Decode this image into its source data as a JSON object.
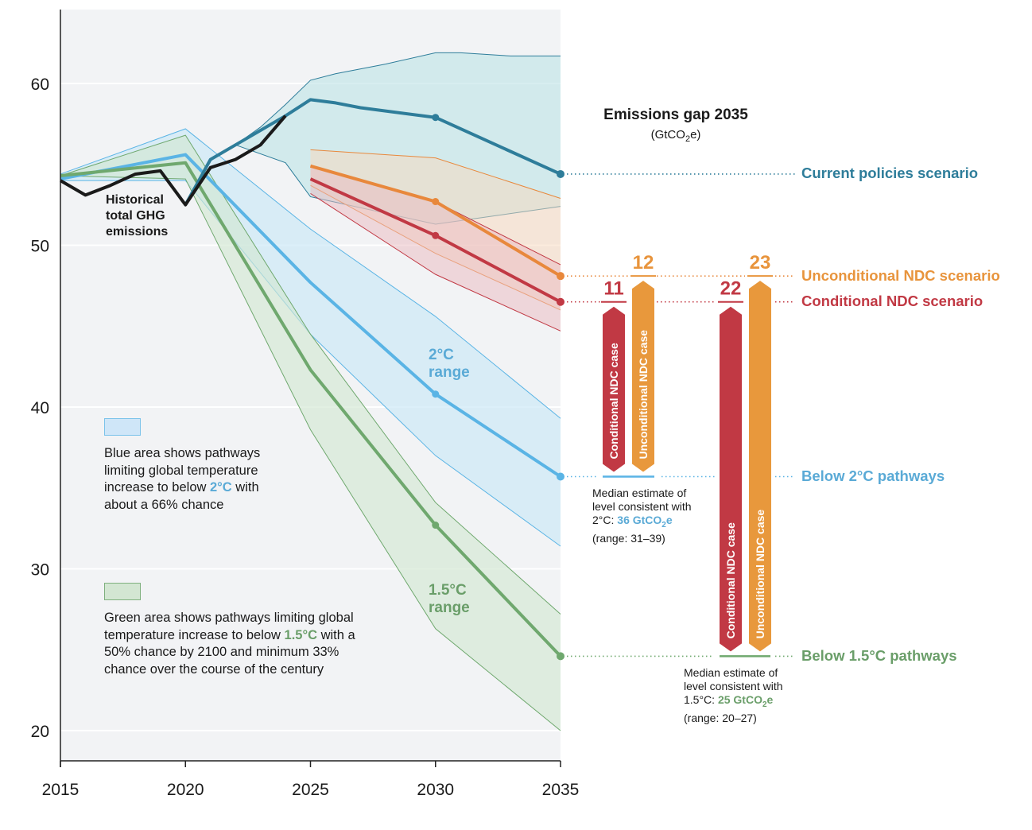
{
  "chart_data": {
    "type": "line",
    "title": "Emissions gap 2035",
    "unit": "GtCO2e",
    "xlabel": "",
    "ylabel": "",
    "xlim": [
      2015,
      2035
    ],
    "ylim": [
      18,
      64.5
    ],
    "x_ticks": [
      2015,
      2020,
      2025,
      2030,
      2035
    ],
    "y_ticks": [
      20,
      30,
      40,
      50,
      60
    ],
    "grid": "horizontal",
    "colors": {
      "historical": "#1a1a1a",
      "current": "#2e7d9a",
      "current_fill": "#bfe3e7",
      "unconditional": "#e8883c",
      "unconditional_fill": "#f8d7bc",
      "conditional": "#c13944",
      "conditional_fill": "#eab9bf",
      "two_c": "#5ab4e5",
      "two_c_fill": "#cde8f7",
      "one_five_c": "#6fa86e",
      "one_five_c_fill": "#d3e8d2",
      "plot_bg": "#f2f3f5"
    },
    "series": [
      {
        "key": "historical",
        "name": "Historical total GHG emissions",
        "x": [
          2015,
          2016,
          2017,
          2018,
          2019,
          2020,
          2021,
          2022,
          2023,
          2024
        ],
        "values": [
          54.0,
          53.1,
          53.7,
          54.4,
          54.6,
          52.5,
          54.8,
          55.3,
          56.2,
          58.0
        ]
      },
      {
        "key": "current",
        "name": "Current policies scenario",
        "x": [
          2020,
          2021,
          2022,
          2023,
          2024,
          2025,
          2026,
          2027,
          2030,
          2035
        ],
        "values": [
          52.5,
          55.3,
          56.2,
          57.1,
          58.0,
          59.0,
          58.8,
          58.5,
          57.9,
          54.4
        ],
        "markers": [
          2030,
          2035
        ],
        "band": {
          "x": [
            2021,
            2022,
            2023,
            2024,
            2025,
            2026,
            2028,
            2030,
            2031,
            2033,
            2035
          ],
          "upper": [
            55.3,
            56.2,
            57.3,
            58.7,
            60.2,
            60.6,
            61.2,
            61.9,
            61.9,
            61.7,
            61.7
          ],
          "lower_x": [
            2021,
            2022,
            2024,
            2025,
            2030,
            2035
          ],
          "lower": [
            55.3,
            56.2,
            55.1,
            53.0,
            51.3,
            52.4
          ]
        }
      },
      {
        "key": "unconditional",
        "name": "Unconditional NDC scenario",
        "x": [
          2025,
          2030,
          2035
        ],
        "values": [
          54.9,
          52.7,
          48.1
        ],
        "markers": [
          2030,
          2035
        ],
        "band": {
          "x": [
            2025,
            2030,
            2035
          ],
          "upper": [
            55.9,
            55.4,
            52.9
          ],
          "lower": [
            53.7,
            49.5,
            46.0
          ]
        }
      },
      {
        "key": "conditional",
        "name": "Conditional NDC scenario",
        "x": [
          2025,
          2030,
          2035
        ],
        "values": [
          54.1,
          50.6,
          46.5
        ],
        "markers": [
          2030,
          2035
        ],
        "band": {
          "x": [
            2025,
            2030,
            2035
          ],
          "upper": [
            54.9,
            52.7,
            48.8
          ],
          "lower": [
            53.2,
            48.2,
            44.7
          ]
        }
      },
      {
        "key": "two_c",
        "name": "Below 2°C pathways",
        "x": [
          2015,
          2020,
          2025,
          2030,
          2035
        ],
        "values": [
          54.1,
          55.6,
          47.7,
          40.8,
          35.7
        ],
        "markers": [
          2030,
          2035
        ],
        "band": {
          "x": [
            2015,
            2020,
            2025,
            2030,
            2035
          ],
          "upper": [
            54.4,
            57.2,
            51.0,
            45.6,
            39.3
          ],
          "lower": [
            54.0,
            54.0,
            44.5,
            37.0,
            31.4
          ]
        }
      },
      {
        "key": "one_five_c",
        "name": "Below 1.5°C pathways",
        "x": [
          2015,
          2020,
          2025,
          2030,
          2035
        ],
        "values": [
          54.3,
          55.1,
          42.3,
          32.7,
          24.6
        ],
        "markers": [
          2030,
          2035
        ],
        "band": {
          "x": [
            2015,
            2020,
            2025,
            2030,
            2035
          ],
          "upper": [
            54.3,
            56.8,
            44.5,
            34.1,
            27.2
          ],
          "lower": [
            54.3,
            54.1,
            38.6,
            26.3,
            20.0
          ]
        }
      }
    ],
    "annotations": {
      "historical_label": [
        "Historical",
        "total GHG",
        "emissions"
      ],
      "two_c_range": [
        "2°C",
        "range"
      ],
      "one_five_c_range": [
        "1.5°C",
        "range"
      ]
    },
    "gaps": [
      {
        "target": "2°C",
        "case": "Conditional NDC case",
        "value": "11",
        "from": 46.5,
        "to": 35.7
      },
      {
        "target": "2°C",
        "case": "Unconditional NDC case",
        "value": "12",
        "from": 48.1,
        "to": 35.7
      },
      {
        "target": "1.5°C",
        "case": "Conditional NDC case",
        "value": "22",
        "from": 46.5,
        "to": 24.6
      },
      {
        "target": "1.5°C",
        "case": "Unconditional NDC case",
        "value": "23",
        "from": 48.1,
        "to": 24.6
      }
    ]
  },
  "right_panel": {
    "title": "Emissions gap 2035",
    "unit_prefix": "(GtCO",
    "unit_sub": "2",
    "unit_suffix": "e)",
    "scenario_labels": {
      "current": "Current policies scenario",
      "unconditional": "Unconditional NDC scenario",
      "conditional": "Conditional NDC scenario",
      "two_c": "Below 2°C pathways",
      "one_five_c": "Below 1.5°C pathways"
    },
    "median_two_c": {
      "line1": "Median estimate of",
      "line2": "level consistent with",
      "prefix": "2°C: ",
      "value": "36 GtCO",
      "sub": "2",
      "suffix": "e",
      "range": "(range: 31–39)"
    },
    "median_one_five_c": {
      "line1": "Median estimate of",
      "line2": "level consistent with",
      "prefix": "1.5°C: ",
      "value": "25 GtCO",
      "sub": "2",
      "suffix": "e",
      "range": "(range: 20–27)"
    }
  },
  "legend": {
    "blue": {
      "text_before": "Blue area shows pathways limiting global temperature increase to below ",
      "highlight": "2°C",
      "text_after": " with about a 66% chance"
    },
    "green": {
      "text_before": "Green area shows pathways limiting global temperature increase to below ",
      "highlight": "1.5°C",
      "text_after": " with a 50% chance by 2100 and minimum 33% chance over the course of the century"
    }
  }
}
